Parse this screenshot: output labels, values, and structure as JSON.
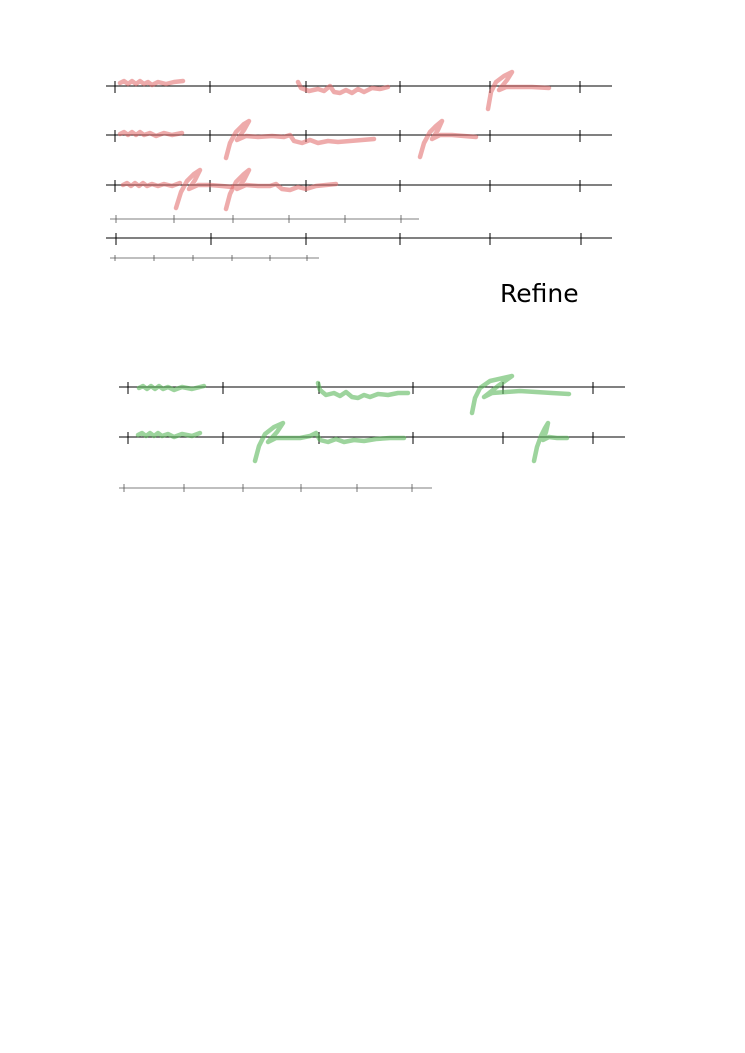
{
  "refine_label": "Refine",
  "colors": {
    "before_strokes": "#e06666",
    "after_strokes": "#5cb85c",
    "axis": "#000000",
    "scale": "#555555"
  }
}
